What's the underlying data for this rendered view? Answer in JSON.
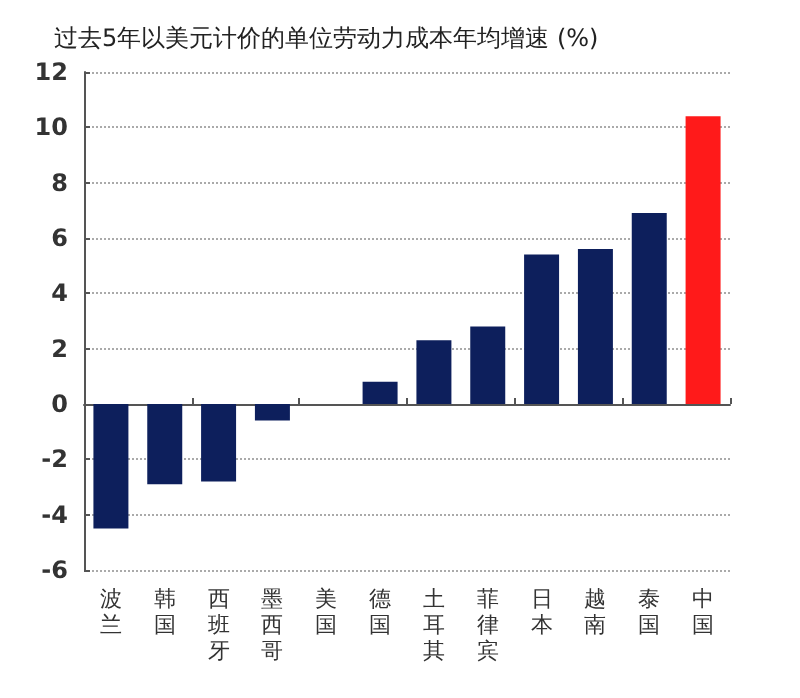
{
  "chart_data": {
    "type": "bar",
    "title": "过去5年以美元计价的单位劳动力成本年均增速 (%)",
    "categories": [
      "波兰",
      "韩国",
      "西班牙",
      "墨西哥",
      "美国",
      "德国",
      "土耳其",
      "菲律宾",
      "日本",
      "越南",
      "泰国",
      "中国"
    ],
    "values": [
      -4.5,
      -2.9,
      -2.8,
      -0.6,
      0,
      0.8,
      2.3,
      2.8,
      5.4,
      5.6,
      6.9,
      10.4
    ],
    "colors": [
      "#0d1f5c",
      "#0d1f5c",
      "#0d1f5c",
      "#0d1f5c",
      "#0d1f5c",
      "#0d1f5c",
      "#0d1f5c",
      "#0d1f5c",
      "#0d1f5c",
      "#0d1f5c",
      "#0d1f5c",
      "#ff1a1a"
    ],
    "ylim": [
      -6,
      12
    ],
    "yticks": [
      -6,
      -4,
      -2,
      0,
      2,
      4,
      6,
      8,
      10,
      12
    ],
    "grid": "y"
  }
}
